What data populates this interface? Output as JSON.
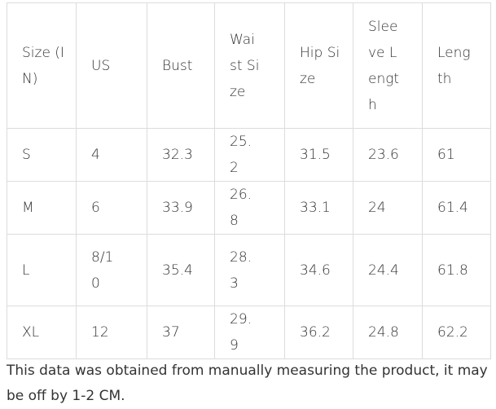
{
  "table": {
    "header": [
      "Size (IN)",
      "US",
      "Bust",
      "Waist Size",
      "Hip Size",
      "Sleeve Length",
      "Length"
    ],
    "rows": [
      [
        "S",
        "4",
        "32.3",
        "25.2",
        "31.5",
        "23.6",
        "61"
      ],
      [
        "M",
        "6",
        "33.9",
        "26.8",
        "33.1",
        "24",
        "61.4"
      ],
      [
        "L",
        "8/10",
        "35.4",
        "28.3",
        "34.6",
        "24.4",
        "61.8"
      ],
      [
        "XL",
        "12",
        "37",
        "29.9",
        "36.2",
        "24.8",
        "62.2"
      ]
    ]
  },
  "note": "This data was obtained from manually measuring the product, it may be off by 1-2 CM."
}
